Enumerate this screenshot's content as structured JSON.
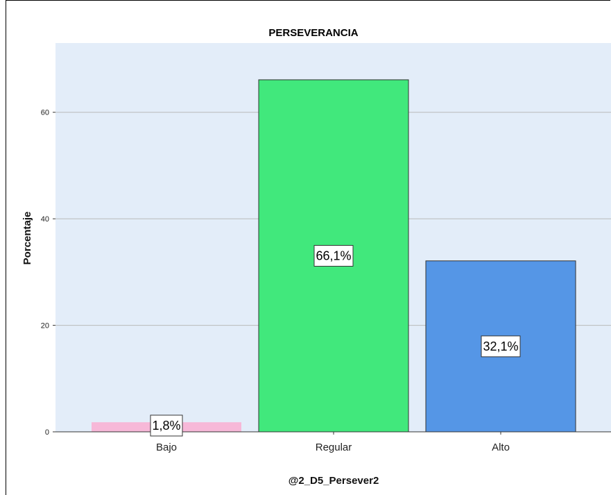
{
  "chart_data": {
    "type": "bar",
    "title": "PERSEVERANCIA",
    "xlabel": "@2_D5_Persever2",
    "ylabel": "Porcentaje",
    "categories": [
      "Bajo",
      "Regular",
      "Alto"
    ],
    "values": [
      1.8,
      66.1,
      32.1
    ],
    "data_labels": [
      "1,8%",
      "66,1%",
      "32,1%"
    ],
    "colors": [
      "#f7b8d8",
      "#41e87c",
      "#5596e6"
    ],
    "yticks": [
      0,
      20,
      40,
      60
    ],
    "ylim": [
      0,
      73
    ],
    "grid": true,
    "background": "#e3edf9"
  }
}
